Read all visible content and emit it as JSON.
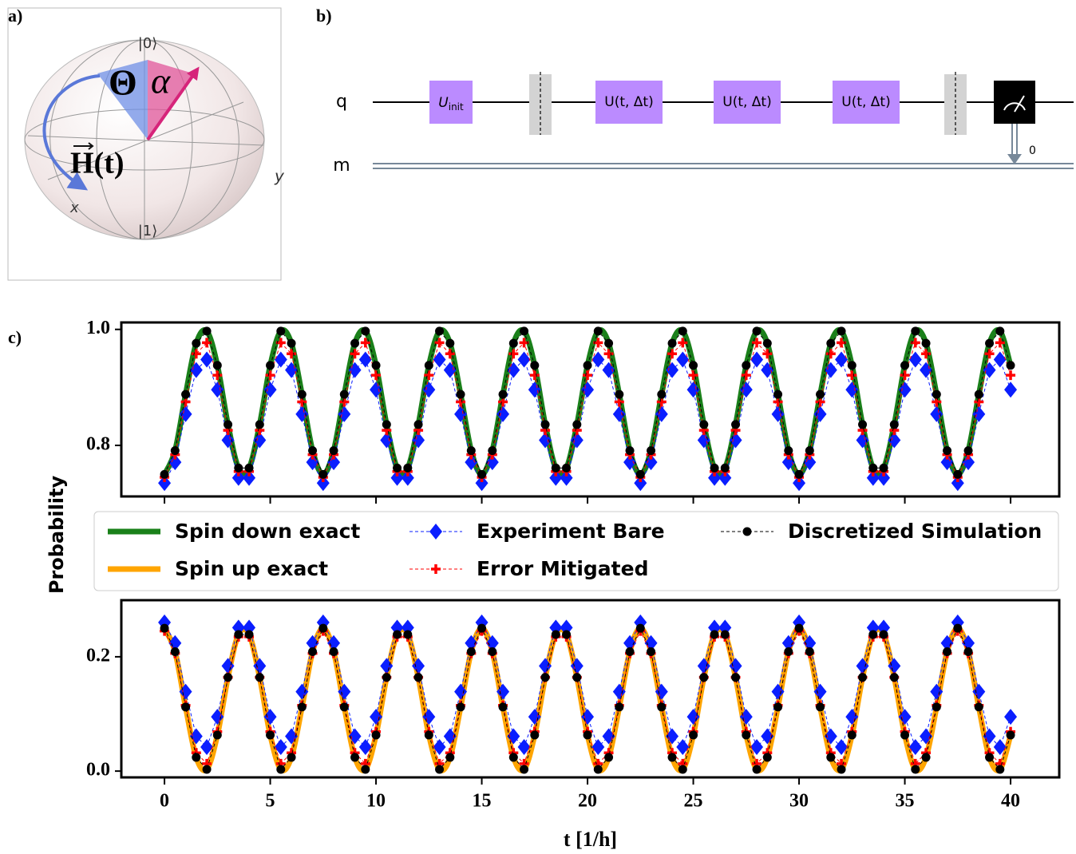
{
  "panel_a": {
    "label": "a)",
    "ket0": "|0⟩",
    "ket1": "|1⟩",
    "x_axis": "x",
    "y_axis": "y",
    "theta": "Θ",
    "alpha": "α",
    "field": "H(t)"
  },
  "panel_b": {
    "label": "b)",
    "qubit": "q",
    "classical": "m",
    "gates": [
      {
        "symbol": "U",
        "subscript": "init"
      },
      {
        "symbol": "U(t, Δt)"
      },
      {
        "symbol": "U(t, Δt)"
      },
      {
        "symbol": "U(t, Δt)"
      }
    ],
    "measure_bit": "0"
  },
  "panel_c": {
    "label": "c)",
    "ylabel": "Probability"
  },
  "chart_data": [
    {
      "type": "line",
      "xlim": [
        -2.04,
        42.3
      ],
      "ylim": [
        0.712,
        1.012
      ],
      "xticks": [
        0,
        5,
        10,
        15,
        20,
        25,
        30,
        35,
        40
      ],
      "yticks": [
        0.8,
        {
          "value": 1,
          "label": "1.0"
        }
      ],
      "x": [
        0,
        0.5,
        1,
        1.5,
        2,
        2.5,
        3,
        3.5,
        4,
        4.5,
        5,
        5.5,
        6,
        6.5,
        7,
        7.5,
        8,
        8.5,
        9,
        9.5,
        10,
        10.5,
        11,
        11.5,
        12,
        12.5,
        13,
        13.5,
        14,
        14.5,
        15,
        15.5,
        16,
        16.5,
        17,
        17.5,
        18,
        18.5,
        19,
        19.5,
        20,
        20.5,
        21,
        21.5,
        22,
        22.5,
        23,
        23.5,
        24,
        24.5,
        25,
        25.5,
        26,
        26.5,
        27,
        27.5,
        28,
        28.5,
        29,
        29.5,
        30,
        30.5,
        31,
        31.5,
        32,
        32.5,
        33,
        33.5,
        34,
        34.5,
        35,
        35.5,
        36,
        36.5,
        37,
        37.5,
        38,
        38.5,
        39,
        39.5,
        40
      ],
      "series": [
        {
          "name": "Spin down exact",
          "color": "#1a801a",
          "values": [
            0.75,
            0.791,
            0.888,
            0.976,
            0.997,
            0.938,
            0.836,
            0.761,
            0.761,
            0.836,
            0.938,
            0.997,
            0.976,
            0.888,
            0.791,
            0.75,
            0.791,
            0.888,
            0.976,
            0.997,
            0.938,
            0.836,
            0.761,
            0.761,
            0.836,
            0.938,
            0.997,
            0.976,
            0.888,
            0.791,
            0.75,
            0.791,
            0.888,
            0.976,
            0.997,
            0.938,
            0.836,
            0.761,
            0.761,
            0.836,
            0.938,
            0.997,
            0.976,
            0.888,
            0.791,
            0.75,
            0.791,
            0.888,
            0.976,
            0.997,
            0.938,
            0.836,
            0.761,
            0.761,
            0.836,
            0.938,
            0.997,
            0.976,
            0.888,
            0.791,
            0.75,
            0.791,
            0.888,
            0.976,
            0.997,
            0.938,
            0.836,
            0.761,
            0.761,
            0.836,
            0.938,
            0.997,
            0.976,
            0.888,
            0.791,
            0.75,
            0.791,
            0.888,
            0.976,
            0.997,
            0.938
          ]
        },
        {
          "name": "Experiment Bare",
          "color": "#0a1eff",
          "marker": "diamond",
          "values": [
            0.735,
            0.771,
            0.854,
            0.93,
            0.948,
            0.896,
            0.809,
            0.744,
            0.744,
            0.809,
            0.896,
            0.948,
            0.93,
            0.854,
            0.771,
            0.735,
            0.771,
            0.854,
            0.93,
            0.948,
            0.896,
            0.809,
            0.744,
            0.744,
            0.809,
            0.896,
            0.948,
            0.93,
            0.854,
            0.771,
            0.735,
            0.771,
            0.854,
            0.93,
            0.948,
            0.896,
            0.809,
            0.744,
            0.744,
            0.809,
            0.896,
            0.948,
            0.93,
            0.854,
            0.771,
            0.735,
            0.771,
            0.854,
            0.93,
            0.948,
            0.896,
            0.809,
            0.744,
            0.744,
            0.809,
            0.896,
            0.948,
            0.93,
            0.854,
            0.771,
            0.735,
            0.771,
            0.854,
            0.93,
            0.948,
            0.896,
            0.809,
            0.744,
            0.744,
            0.809,
            0.896,
            0.948,
            0.93,
            0.854,
            0.771,
            0.735,
            0.771,
            0.854,
            0.93,
            0.948,
            0.896
          ]
        },
        {
          "name": "Error Mitigated",
          "color": "#ff0000",
          "marker": "plus",
          "values": [
            0.745,
            0.784,
            0.875,
            0.958,
            0.977,
            0.921,
            0.826,
            0.755,
            0.755,
            0.826,
            0.921,
            0.977,
            0.958,
            0.875,
            0.784,
            0.745,
            0.784,
            0.875,
            0.958,
            0.977,
            0.921,
            0.826,
            0.755,
            0.755,
            0.826,
            0.921,
            0.977,
            0.958,
            0.875,
            0.784,
            0.745,
            0.784,
            0.875,
            0.958,
            0.977,
            0.921,
            0.826,
            0.755,
            0.755,
            0.826,
            0.921,
            0.977,
            0.958,
            0.875,
            0.784,
            0.745,
            0.784,
            0.875,
            0.958,
            0.977,
            0.921,
            0.826,
            0.755,
            0.755,
            0.826,
            0.921,
            0.977,
            0.958,
            0.875,
            0.784,
            0.745,
            0.784,
            0.875,
            0.958,
            0.977,
            0.921,
            0.826,
            0.755,
            0.755,
            0.826,
            0.921,
            0.977,
            0.958,
            0.875,
            0.784,
            0.745,
            0.784,
            0.875,
            0.958,
            0.977,
            0.921
          ]
        },
        {
          "name": "Discretized Simulation",
          "color": "#000000",
          "marker": "circle",
          "values": [
            0.75,
            0.791,
            0.888,
            0.976,
            0.997,
            0.938,
            0.836,
            0.761,
            0.761,
            0.836,
            0.938,
            0.997,
            0.976,
            0.888,
            0.791,
            0.75,
            0.791,
            0.888,
            0.976,
            0.997,
            0.938,
            0.836,
            0.761,
            0.761,
            0.836,
            0.938,
            0.997,
            0.976,
            0.888,
            0.791,
            0.75,
            0.791,
            0.888,
            0.976,
            0.997,
            0.938,
            0.836,
            0.761,
            0.761,
            0.836,
            0.938,
            0.997,
            0.976,
            0.888,
            0.791,
            0.75,
            0.791,
            0.888,
            0.976,
            0.997,
            0.938,
            0.836,
            0.761,
            0.761,
            0.836,
            0.938,
            0.997,
            0.976,
            0.888,
            0.791,
            0.75,
            0.791,
            0.888,
            0.976,
            0.997,
            0.938,
            0.836,
            0.761,
            0.761,
            0.836,
            0.938,
            0.997,
            0.976,
            0.888,
            0.791,
            0.75,
            0.791,
            0.888,
            0.976,
            0.997,
            0.938
          ]
        }
      ]
    },
    {
      "type": "line",
      "xlim": [
        -2.04,
        42.3
      ],
      "ylim": [
        -0.011,
        0.299
      ],
      "xlabel": "t [1/h]",
      "xticks": [
        0,
        5,
        10,
        15,
        20,
        25,
        30,
        35,
        40
      ],
      "yticks": [
        {
          "value": 0,
          "label": "0.0"
        },
        0.2
      ],
      "x": [
        0,
        0.5,
        1,
        1.5,
        2,
        2.5,
        3,
        3.5,
        4,
        4.5,
        5,
        5.5,
        6,
        6.5,
        7,
        7.5,
        8,
        8.5,
        9,
        9.5,
        10,
        10.5,
        11,
        11.5,
        12,
        12.5,
        13,
        13.5,
        14,
        14.5,
        15,
        15.5,
        16,
        16.5,
        17,
        17.5,
        18,
        18.5,
        19,
        19.5,
        20,
        20.5,
        21,
        21.5,
        22,
        22.5,
        23,
        23.5,
        24,
        24.5,
        25,
        25.5,
        26,
        26.5,
        27,
        27.5,
        28,
        28.5,
        29,
        29.5,
        30,
        30.5,
        31,
        31.5,
        32,
        32.5,
        33,
        33.5,
        34,
        34.5,
        35,
        35.5,
        36,
        36.5,
        37,
        37.5,
        38,
        38.5,
        39,
        39.5,
        40
      ],
      "series": [
        {
          "name": "Spin up exact",
          "color": "#ffa500",
          "values": [
            0.25,
            0.209,
            0.112,
            0.024,
            0.003,
            0.063,
            0.164,
            0.239,
            0.239,
            0.164,
            0.063,
            0.003,
            0.024,
            0.112,
            0.209,
            0.25,
            0.209,
            0.112,
            0.024,
            0.003,
            0.063,
            0.164,
            0.239,
            0.239,
            0.164,
            0.063,
            0.003,
            0.024,
            0.112,
            0.209,
            0.25,
            0.209,
            0.112,
            0.024,
            0.003,
            0.063,
            0.164,
            0.239,
            0.239,
            0.164,
            0.063,
            0.003,
            0.024,
            0.112,
            0.209,
            0.25,
            0.209,
            0.112,
            0.024,
            0.003,
            0.063,
            0.164,
            0.239,
            0.239,
            0.164,
            0.063,
            0.003,
            0.024,
            0.112,
            0.209,
            0.25,
            0.209,
            0.112,
            0.024,
            0.003,
            0.063,
            0.164,
            0.239,
            0.239,
            0.164,
            0.063,
            0.003,
            0.024,
            0.112,
            0.209,
            0.25,
            0.209,
            0.112,
            0.024,
            0.003,
            0.063
          ]
        },
        {
          "color": "#0a1eff",
          "marker": "diamond",
          "values": [
            0.26,
            0.224,
            0.139,
            0.061,
            0.042,
            0.095,
            0.184,
            0.251,
            0.251,
            0.184,
            0.095,
            0.042,
            0.061,
            0.139,
            0.224,
            0.26,
            0.224,
            0.139,
            0.061,
            0.042,
            0.095,
            0.184,
            0.251,
            0.251,
            0.184,
            0.095,
            0.042,
            0.061,
            0.139,
            0.224,
            0.26,
            0.224,
            0.139,
            0.061,
            0.042,
            0.095,
            0.184,
            0.251,
            0.251,
            0.184,
            0.095,
            0.042,
            0.061,
            0.139,
            0.224,
            0.26,
            0.224,
            0.139,
            0.061,
            0.042,
            0.095,
            0.184,
            0.251,
            0.251,
            0.184,
            0.095,
            0.042,
            0.061,
            0.139,
            0.224,
            0.26,
            0.224,
            0.139,
            0.061,
            0.042,
            0.095,
            0.184,
            0.251,
            0.251,
            0.184,
            0.095,
            0.042,
            0.061,
            0.139,
            0.224,
            0.26,
            0.224,
            0.139,
            0.061,
            0.042,
            0.095
          ]
        },
        {
          "color": "#ff0000",
          "marker": "plus",
          "values": [
            0.245,
            0.206,
            0.115,
            0.032,
            0.013,
            0.069,
            0.164,
            0.235,
            0.235,
            0.164,
            0.069,
            0.013,
            0.032,
            0.115,
            0.206,
            0.245,
            0.206,
            0.115,
            0.032,
            0.013,
            0.069,
            0.164,
            0.235,
            0.235,
            0.164,
            0.069,
            0.013,
            0.032,
            0.115,
            0.206,
            0.245,
            0.206,
            0.115,
            0.032,
            0.013,
            0.069,
            0.164,
            0.235,
            0.235,
            0.164,
            0.069,
            0.013,
            0.032,
            0.115,
            0.206,
            0.245,
            0.206,
            0.115,
            0.032,
            0.013,
            0.069,
            0.164,
            0.235,
            0.235,
            0.164,
            0.069,
            0.013,
            0.032,
            0.115,
            0.206,
            0.245,
            0.206,
            0.115,
            0.032,
            0.013,
            0.069,
            0.164,
            0.235,
            0.235,
            0.164,
            0.069,
            0.013,
            0.032,
            0.115,
            0.206,
            0.245,
            0.206,
            0.115,
            0.032,
            0.013,
            0.069
          ]
        },
        {
          "color": "#000000",
          "marker": "circle",
          "values": [
            0.25,
            0.209,
            0.112,
            0.024,
            0.003,
            0.063,
            0.164,
            0.239,
            0.239,
            0.164,
            0.063,
            0.003,
            0.024,
            0.112,
            0.209,
            0.25,
            0.209,
            0.112,
            0.024,
            0.003,
            0.063,
            0.164,
            0.239,
            0.239,
            0.164,
            0.063,
            0.003,
            0.024,
            0.112,
            0.209,
            0.25,
            0.209,
            0.112,
            0.024,
            0.003,
            0.063,
            0.164,
            0.239,
            0.239,
            0.164,
            0.063,
            0.003,
            0.024,
            0.112,
            0.209,
            0.25,
            0.209,
            0.112,
            0.024,
            0.003,
            0.063,
            0.164,
            0.239,
            0.239,
            0.164,
            0.063,
            0.003,
            0.024,
            0.112,
            0.209,
            0.25,
            0.209,
            0.112,
            0.024,
            0.003,
            0.063,
            0.164,
            0.239,
            0.239,
            0.164,
            0.063,
            0.003,
            0.024,
            0.112,
            0.209,
            0.25,
            0.209,
            0.112,
            0.024,
            0.003,
            0.063
          ]
        }
      ]
    }
  ]
}
